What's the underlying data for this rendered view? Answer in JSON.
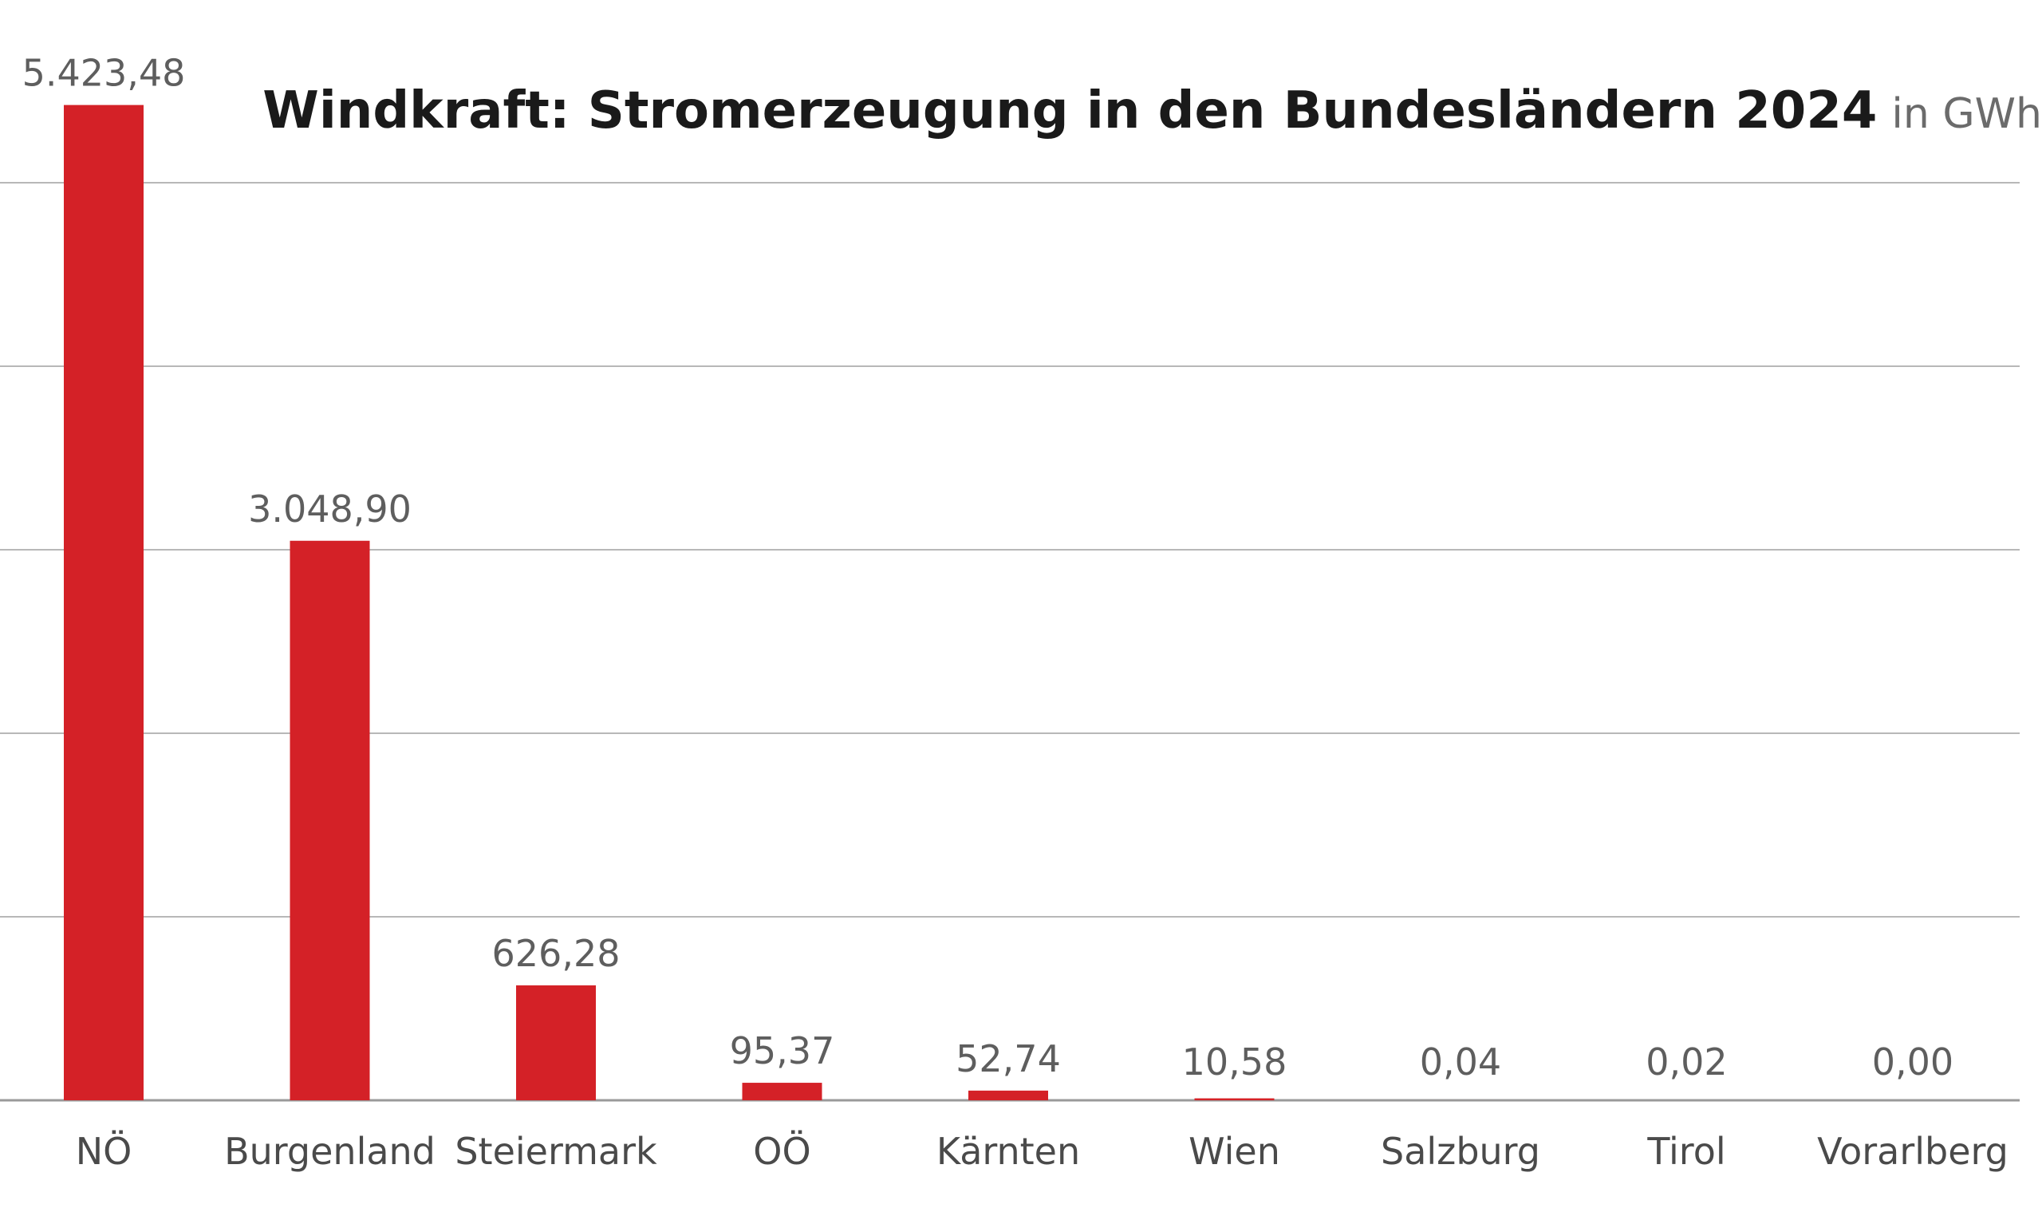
{
  "chart_data": {
    "type": "bar",
    "title": "Windkraft: Stromerzeugung in den Bundesländern 2024",
    "unit": "in GWh",
    "xlabel": "",
    "ylabel": "",
    "categories": [
      "NÖ",
      "Burgenland",
      "Steiermark",
      "OÖ",
      "Kärnten",
      "Wien",
      "Salzburg",
      "Tirol",
      "Vorarlberg"
    ],
    "values": [
      5423.48,
      3048.9,
      626.28,
      95.37,
      52.74,
      10.58,
      0.04,
      0.02,
      0.0
    ],
    "value_labels": [
      "5.423,48",
      "3.048,90",
      "626,28",
      "95,37",
      "52,74",
      "10,58",
      "0,04",
      "0,02",
      "0,00"
    ],
    "ylim": [
      0,
      5000
    ],
    "gridlines": [
      0,
      1000,
      2000,
      3000,
      4000,
      5000
    ],
    "grid": true,
    "bar_color": "#d42127",
    "legend": "none"
  }
}
